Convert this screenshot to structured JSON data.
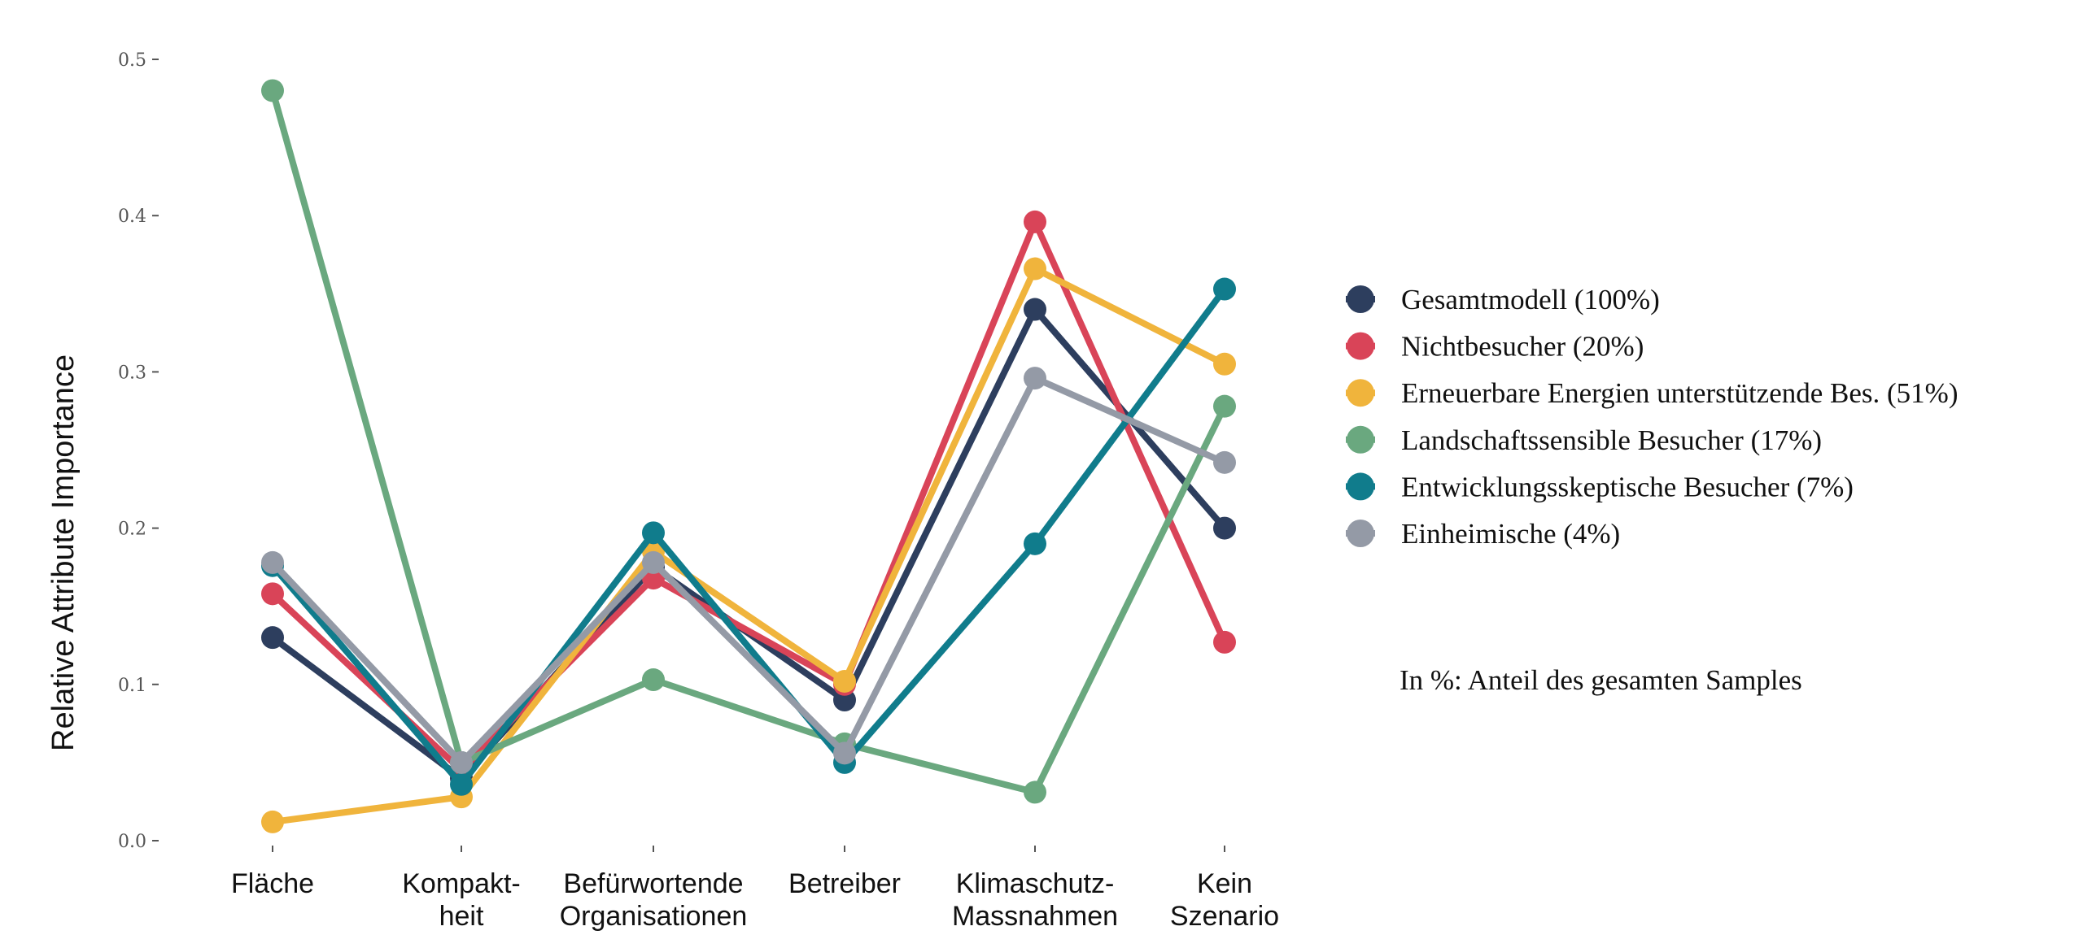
{
  "chart_data": {
    "type": "line",
    "categories": [
      [
        "Fläche"
      ],
      [
        "Kompakt-",
        "heit"
      ],
      [
        "Befürwortende",
        "Organisationen"
      ],
      [
        "Betreiber"
      ],
      [
        "Klimaschutz-",
        "Massnahmen"
      ],
      [
        "Kein",
        "Szenario"
      ]
    ],
    "ylabel": "Relative Attribute Importance",
    "ylim": [
      0,
      0.5
    ],
    "yticks": [
      "0.0",
      "0.1",
      "0.2",
      "0.3",
      "0.4",
      "0.5"
    ],
    "grid": false,
    "legend_position": "right",
    "series": [
      {
        "name": "Gesamtmodell (100%)",
        "color": "#2d3e5e",
        "values": [
          0.13,
          0.04,
          0.175,
          0.09,
          0.34,
          0.2
        ]
      },
      {
        "name": "Nichtbesucher (20%)",
        "color": "#d94458",
        "values": [
          0.158,
          0.045,
          0.168,
          0.1,
          0.396,
          0.127
        ]
      },
      {
        "name": "Erneuerbare Energien unterstützende Bes. (51%)",
        "color": "#f0b43c",
        "values": [
          0.012,
          0.028,
          0.185,
          0.102,
          0.366,
          0.305
        ]
      },
      {
        "name": "Landschaftssensible Besucher (17%)",
        "color": "#6aa87f",
        "values": [
          0.48,
          0.05,
          0.103,
          0.062,
          0.031,
          0.278
        ]
      },
      {
        "name": "Entwicklungsskeptische Besucher (7%)",
        "color": "#107c8c",
        "values": [
          0.176,
          0.036,
          0.197,
          0.05,
          0.19,
          0.353
        ]
      },
      {
        "name": "Einheimische (4%)",
        "color": "#949aa6",
        "values": [
          0.178,
          0.05,
          0.178,
          0.056,
          0.296,
          0.242
        ]
      }
    ],
    "annotation": "In %: Anteil des gesamten Samples"
  }
}
